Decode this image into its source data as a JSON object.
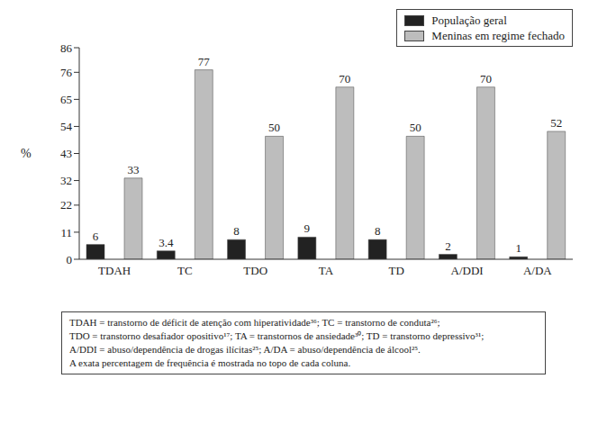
{
  "chart_data": {
    "type": "bar",
    "y_label": "%",
    "categories": [
      "TDAH",
      "TC",
      "TDO",
      "TA",
      "TD",
      "A/DDI",
      "A/DA"
    ],
    "series": [
      {
        "name": "População geral",
        "color": "#222222",
        "values": [
          6,
          3.4,
          8,
          9,
          8,
          2,
          1
        ]
      },
      {
        "name": "Meninas em regime fechado",
        "color": "#bdbdbd",
        "values": [
          33,
          77,
          50,
          70,
          50,
          70,
          52
        ]
      }
    ],
    "ylim": [
      0,
      86
    ],
    "yticks": [
      0,
      11,
      22,
      32,
      43,
      54,
      65,
      76,
      86
    ],
    "grid": false,
    "data_labels": true,
    "legend": "upper right",
    "annotations": [
      "TDAH = transtorno de déficit de atenção com hiperatividade³⁶; TC = transtorno de conduta²⁶;",
      "TDO = transtorno desafiador opositivo¹⁷; TA = transtornos de ansiedade³⁰; TD = transtorno depressivo³¹;",
      "A/DDI = abuso/dependência de drogas ilícitas²⁵; A/DA = abuso/dependência de álcool²⁵.",
      "A exata percentagem de frequência é mostrada no topo de cada coluna."
    ]
  }
}
